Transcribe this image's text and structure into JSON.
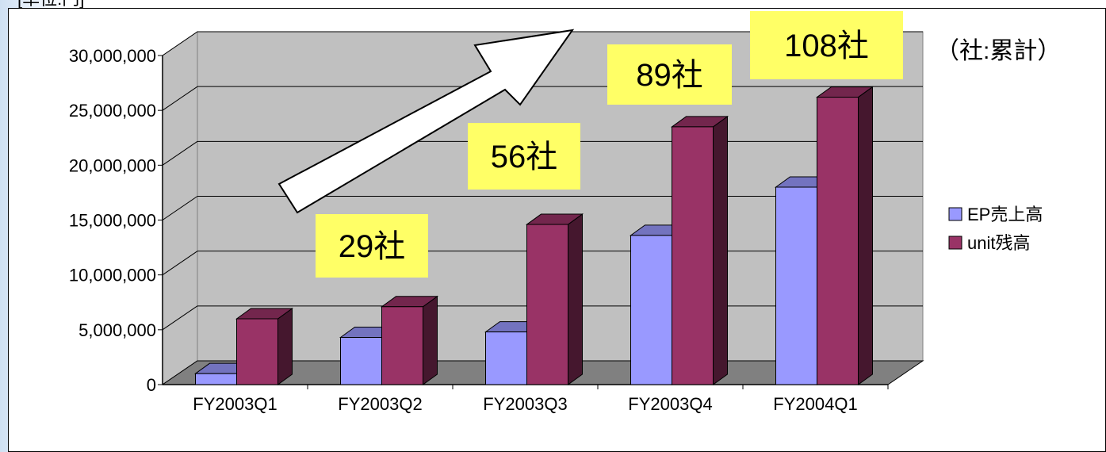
{
  "chart_data": {
    "type": "bar",
    "variant": "3d-clustered-column",
    "title": "",
    "ylabel_partial": "[単位:円]",
    "unit_note": "（社:累計）",
    "categories": [
      "FY2003Q1",
      "FY2003Q2",
      "FY2003Q3",
      "FY2003Q4",
      "FY2004Q1"
    ],
    "y_ticks": [
      "0",
      "5,000,000",
      "10,000,000",
      "15,000,000",
      "20,000,000",
      "25,000,000",
      "30,000,000"
    ],
    "ylim": [
      0,
      30000000
    ],
    "grid": true,
    "legend_position": "right",
    "series": [
      {
        "name": "EP売上高",
        "color": "#9999ff",
        "values": [
          1000000,
          4300000,
          4800000,
          13600000,
          18000000
        ]
      },
      {
        "name": "unit残高",
        "color": "#993366",
        "values": [
          6000000,
          7100000,
          14600000,
          23500000,
          26200000
        ]
      }
    ],
    "annotations": [
      {
        "text": "29社",
        "category_index": 1
      },
      {
        "text": "56社",
        "category_index": 2
      },
      {
        "text": "89社",
        "category_index": 3
      },
      {
        "text": "108社",
        "category_index": 4
      }
    ]
  }
}
